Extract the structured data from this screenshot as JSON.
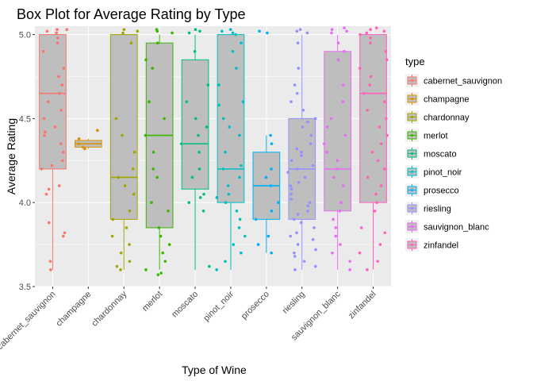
{
  "chart_data": {
    "type": "box",
    "title": "Box Plot for Average Rating by Type",
    "xlabel": "Type of Wine",
    "ylabel": "Average Rating",
    "ylim": [
      3.5,
      5.05
    ],
    "yticks": [
      3.5,
      4.0,
      4.5,
      5.0
    ],
    "ytick_labels": [
      "3.5",
      "4.0",
      "4.5",
      "5.0"
    ],
    "grid": true,
    "legend_title": "type",
    "legend_position": "right",
    "categories": [
      "cabernet_sauvignon",
      "champagne",
      "chardonnay",
      "merlot",
      "moscato",
      "pinot_noir",
      "prosecco",
      "riesling",
      "sauvignon_blanc",
      "zinfandel"
    ],
    "colors": [
      "#F8766D",
      "#D89000",
      "#A3A500",
      "#39B600",
      "#00BF7D",
      "#00BFC4",
      "#00B0F6",
      "#9590FF",
      "#E76BF3",
      "#FF62BC"
    ],
    "box_fill": "#BEBEBE",
    "panel_bg": "#EBEBEB",
    "boxes": [
      {
        "min": 3.6,
        "q1": 4.2,
        "median": 4.65,
        "q3": 5.0,
        "max": 5.0
      },
      {
        "min": 4.32,
        "q1": 4.33,
        "median": 4.35,
        "q3": 4.37,
        "max": 4.38
      },
      {
        "min": 3.6,
        "q1": 3.9,
        "median": 4.15,
        "q3": 5.0,
        "max": 5.0
      },
      {
        "min": 3.6,
        "q1": 3.85,
        "median": 4.4,
        "q3": 4.95,
        "max": 5.0
      },
      {
        "min": 3.6,
        "q1": 4.08,
        "median": 4.35,
        "q3": 4.85,
        "max": 5.0
      },
      {
        "min": 3.6,
        "q1": 4.0,
        "median": 4.2,
        "q3": 5.0,
        "max": 5.0
      },
      {
        "min": 3.7,
        "q1": 3.9,
        "median": 4.1,
        "q3": 4.3,
        "max": 4.4
      },
      {
        "min": 3.6,
        "q1": 3.9,
        "median": 4.2,
        "q3": 4.5,
        "max": 5.0
      },
      {
        "min": 3.6,
        "q1": 3.95,
        "median": 4.2,
        "q3": 4.9,
        "max": 5.0
      },
      {
        "min": 3.6,
        "q1": 4.0,
        "median": 4.65,
        "q3": 5.0,
        "max": 5.0
      }
    ],
    "points": [
      [
        5.03,
        5.02,
        5.01,
        5.03,
        4.98,
        4.95,
        4.9,
        4.8,
        4.75,
        4.7,
        4.65,
        4.6,
        4.55,
        4.5,
        4.45,
        4.42,
        4.4,
        4.35,
        4.3,
        4.25,
        4.2,
        4.22,
        4.1,
        4.08,
        4.05,
        3.88,
        3.82,
        3.8,
        3.65,
        3.6
      ],
      [
        4.43,
        4.38,
        4.35,
        4.33,
        4.32
      ],
      [
        5.03,
        5.02,
        5.01,
        4.95,
        4.5,
        4.4,
        4.3,
        4.2,
        4.15,
        4.1,
        4.05,
        3.95,
        3.9,
        3.85,
        3.8,
        3.75,
        3.7,
        3.65,
        3.62,
        3.6
      ],
      [
        5.03,
        5.02,
        5.01,
        4.95,
        4.85,
        4.8,
        4.6,
        4.5,
        4.4,
        4.3,
        4.2,
        4.15,
        4.0,
        3.95,
        3.85,
        3.8,
        3.75,
        3.7,
        3.65,
        3.6,
        3.58,
        3.57
      ],
      [
        5.03,
        5.02,
        5.01,
        4.9,
        4.7,
        4.6,
        4.5,
        4.45,
        4.4,
        4.35,
        4.3,
        4.2,
        4.15,
        4.05,
        4.03,
        4.0,
        3.95,
        3.62
      ],
      [
        5.03,
        5.02,
        5.01,
        5.0,
        4.95,
        4.9,
        4.8,
        4.7,
        4.6,
        4.58,
        4.5,
        4.45,
        4.4,
        4.3,
        4.22,
        4.2,
        4.15,
        4.1,
        4.05,
        4.03,
        4.0,
        3.95,
        3.9,
        3.85,
        3.8,
        3.75,
        3.7,
        3.65,
        3.6
      ],
      [
        5.02,
        5.01,
        4.4,
        4.35,
        4.2,
        4.15,
        4.1,
        4.0,
        3.95,
        3.9,
        3.8,
        3.75,
        3.7
      ],
      [
        5.03,
        5.02,
        5.01,
        4.95,
        4.8,
        4.7,
        4.65,
        4.6,
        4.55,
        4.5,
        4.48,
        4.45,
        4.4,
        4.35,
        4.32,
        4.3,
        4.28,
        4.25,
        4.22,
        4.2,
        4.18,
        4.15,
        4.12,
        4.1,
        4.08,
        4.05,
        4.02,
        4.0,
        3.98,
        3.95,
        3.93,
        3.9,
        3.88,
        3.85,
        3.82,
        3.8,
        3.78,
        3.75,
        3.72,
        3.7,
        3.68,
        3.65,
        3.62,
        3.6
      ],
      [
        5.04,
        5.03,
        5.02,
        5.01,
        4.95,
        4.9,
        4.85,
        4.7,
        4.6,
        4.5,
        4.45,
        4.4,
        4.35,
        4.3,
        4.25,
        4.2,
        4.15,
        4.1,
        4.0,
        3.95,
        3.9,
        3.85,
        3.8,
        3.75,
        3.7,
        3.65,
        3.6
      ],
      [
        5.04,
        5.03,
        5.02,
        5.01,
        5.0,
        4.98,
        4.95,
        4.9,
        4.85,
        4.8,
        4.75,
        4.7,
        4.65,
        4.6,
        4.55,
        4.5,
        4.45,
        4.4,
        4.35,
        4.3,
        4.25,
        4.2,
        4.15,
        4.1,
        4.05,
        4.0,
        3.95,
        3.85,
        3.82,
        3.75,
        3.7,
        3.65,
        3.6
      ]
    ]
  }
}
